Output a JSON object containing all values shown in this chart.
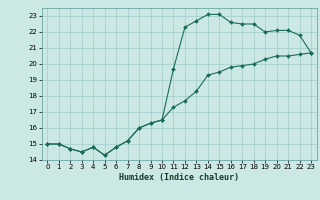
{
  "xlabel": "Humidex (Indice chaleur)",
  "background_color": "#cce8e5",
  "grid_color": "#a0cccc",
  "line_color": "#1a6b5a",
  "xlim": [
    -0.5,
    23.5
  ],
  "ylim": [
    14,
    23.5
  ],
  "yticks": [
    14,
    15,
    16,
    17,
    18,
    19,
    20,
    21,
    22,
    23
  ],
  "xticks": [
    0,
    1,
    2,
    3,
    4,
    5,
    6,
    7,
    8,
    9,
    10,
    11,
    12,
    13,
    14,
    15,
    16,
    17,
    18,
    19,
    20,
    21,
    22,
    23
  ],
  "curve1_x": [
    0,
    1,
    2,
    3,
    4,
    5,
    6,
    7,
    8,
    9,
    10,
    11,
    12,
    13,
    14,
    15,
    16,
    17,
    18,
    19,
    20,
    21,
    22,
    23
  ],
  "curve1_y": [
    15.0,
    15.0,
    14.7,
    14.5,
    14.8,
    14.3,
    14.8,
    15.2,
    16.0,
    16.3,
    16.5,
    19.7,
    22.3,
    22.7,
    23.1,
    23.1,
    22.6,
    22.5,
    22.5,
    22.0,
    22.1,
    22.1,
    21.8,
    20.7
  ],
  "curve2_x": [
    0,
    1,
    2,
    3,
    4,
    5,
    6,
    7,
    8,
    9,
    10,
    11,
    12,
    13,
    14,
    15,
    16,
    17,
    18,
    19,
    20,
    21,
    22,
    23
  ],
  "curve2_y": [
    15.0,
    15.0,
    14.7,
    14.5,
    14.8,
    14.3,
    14.8,
    15.2,
    16.0,
    16.3,
    16.5,
    17.3,
    17.7,
    18.3,
    19.3,
    19.5,
    19.8,
    19.9,
    20.0,
    20.3,
    20.5,
    20.5,
    20.6,
    20.7
  ]
}
